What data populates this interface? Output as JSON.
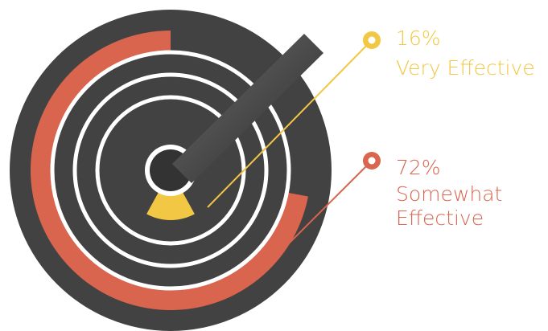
{
  "chart_data": {
    "type": "radial",
    "categories": [
      "Very Effective",
      "Somewhat Effective"
    ],
    "values": [
      16,
      72
    ],
    "value_labels": [
      "16%",
      "72%"
    ],
    "colors": [
      "#f2c744",
      "#d9654f"
    ]
  }
}
